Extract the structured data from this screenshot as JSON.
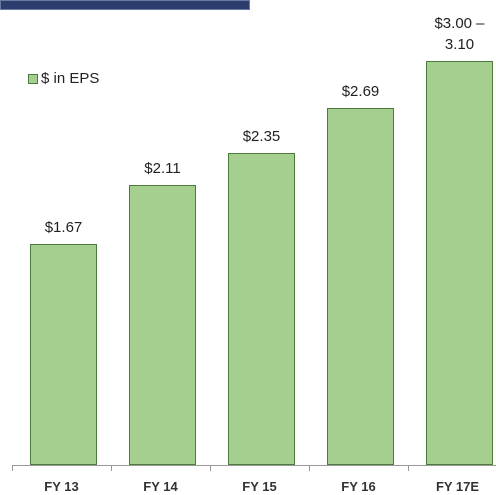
{
  "chart_data": {
    "type": "bar",
    "categories": [
      "FY 13",
      "FY 14",
      "FY 15",
      "FY 16",
      "FY 17E"
    ],
    "series": [
      {
        "name": "$ in EPS",
        "color": "#a4cf8e",
        "values": [
          1.67,
          2.11,
          2.35,
          2.69,
          3.05
        ],
        "value_labels": [
          "$1.67",
          "$2.11",
          "$2.35",
          "$2.69",
          "$3.00 – 3.10"
        ]
      }
    ],
    "ylim": [
      0,
      3.5
    ],
    "legend": "upper left"
  }
}
